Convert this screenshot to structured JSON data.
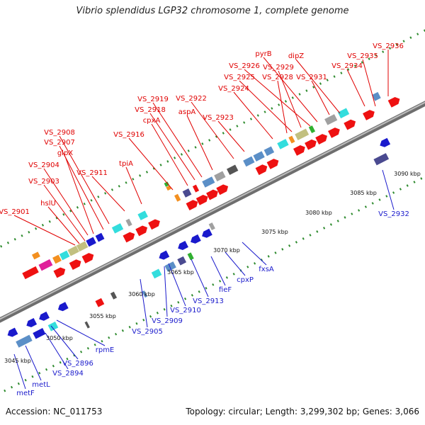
{
  "title": "Vibrio splendidus LGP32 chromosome 1, complete genome",
  "footer": {
    "accession": "Accession: NC_011753",
    "summary": "Topology: circular; Length: 3,299,302 bp; Genes: 3,066"
  },
  "colors": {
    "backbone": "#8a8a8a",
    "tick": "#2e8b2e",
    "label_top": "#e00000",
    "label_bottom": "#1a1acc",
    "red": "#ee1111",
    "blue": "#1a1acc",
    "cyan": "#33dddd",
    "steel": "#5b8fc7",
    "gray": "#a0a0a0",
    "dark": "#555555",
    "olive": "#c2c080",
    "orange": "#f39020",
    "magenta": "#e0209a",
    "navy": "#4a4a90",
    "green": "#30b030"
  },
  "scale_labels": [
    "3045 kbp",
    "3050 kbp",
    "3055 kbp",
    "3060 kbp",
    "3065 kbp",
    "3070 kbp",
    "3075 kbp",
    "3080 kbp",
    "3085 kbp",
    "3090 kbp"
  ],
  "top_labels": [
    "VS_2936",
    "VS_2935",
    "dipZ",
    "pyrB",
    "VS_2934",
    "VS_2926",
    "VS_2929",
    "VS_2925",
    "VS_2928",
    "VS_2931",
    "VS_2924",
    "VS_2922",
    "VS_2919",
    "VS_2918",
    "aspA",
    "VS_2923",
    "cpxA",
    "VS_2916",
    "VS_2908",
    "VS_2907",
    "glpX",
    "tpiA",
    "VS_2904",
    "VS_2911",
    "VS_2903",
    "hslU",
    "VS_2901"
  ],
  "bottom_labels": [
    "VS_2932",
    "fxsA",
    "cpxP",
    "fieF",
    "VS_2913",
    "VS_2910",
    "VS_2909",
    "VS_2905",
    "rpmE",
    "VS_2896",
    "VS_2894",
    "metL",
    "metF"
  ]
}
